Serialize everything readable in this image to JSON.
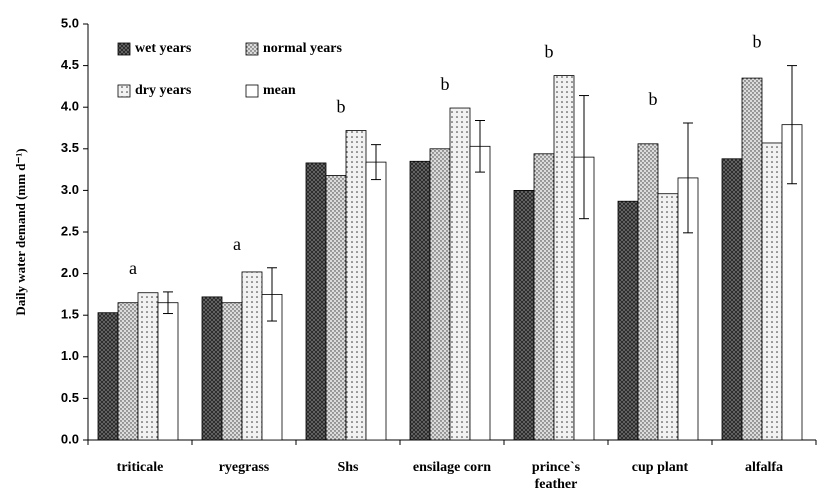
{
  "chart_data": {
    "type": "bar",
    "y_label": "Daily water demand (mm d⁻¹)",
    "categories": [
      "triticale",
      "ryegrass",
      "Shs",
      "ensilage corn",
      "prince`s feather",
      "cup plant",
      "alfalfa"
    ],
    "series": [
      {
        "name": "wet years",
        "color": "#6e6e6e",
        "values": [
          1.53,
          1.72,
          3.33,
          3.35,
          3.0,
          2.87,
          3.38
        ]
      },
      {
        "name": "normal years",
        "color": "#dcdcdc",
        "values": [
          1.65,
          1.65,
          3.18,
          3.5,
          3.44,
          3.56,
          4.35
        ]
      },
      {
        "name": "dry years",
        "color": "#f2f2f2",
        "values": [
          1.77,
          2.02,
          3.72,
          3.99,
          4.38,
          2.96,
          3.57
        ]
      },
      {
        "name": "mean",
        "color": "#ffffff",
        "values": [
          1.65,
          1.75,
          3.34,
          3.53,
          3.4,
          3.15,
          3.79
        ],
        "errors": [
          0.13,
          0.32,
          0.21,
          0.31,
          0.74,
          0.66,
          0.71
        ]
      }
    ],
    "annotations": [
      "a",
      "a",
      "b",
      "b",
      "b",
      "b",
      "b"
    ],
    "ylim": [
      0,
      5
    ],
    "yticks": [
      {
        "value": 0,
        "label": "0.0"
      },
      {
        "value": 0.5,
        "label": "0.5"
      },
      {
        "value": 1,
        "label": "1.0"
      },
      {
        "value": 1.5,
        "label": "1.5"
      },
      {
        "value": 2,
        "label": "2.0"
      },
      {
        "value": 2.5,
        "label": "2.5"
      },
      {
        "value": 3,
        "label": "3.0"
      },
      {
        "value": 3.5,
        "label": "3.5"
      },
      {
        "value": 4,
        "label": "4.0"
      },
      {
        "value": 4.5,
        "label": "4.5"
      },
      {
        "value": 5,
        "label": "5.0"
      }
    ],
    "legend": "upper left"
  }
}
